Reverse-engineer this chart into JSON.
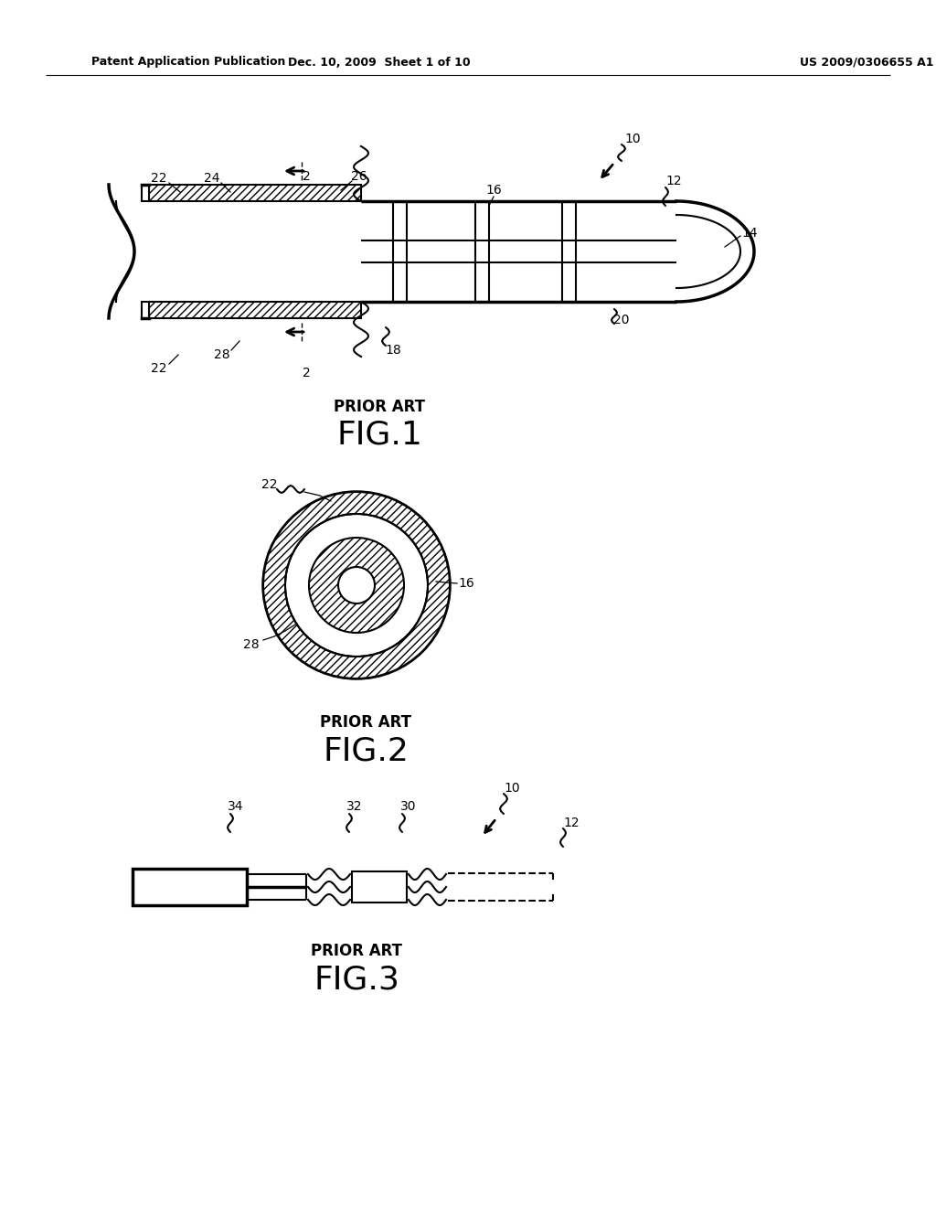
{
  "bg_color": "#ffffff",
  "header_left": "Patent Application Publication",
  "header_mid": "Dec. 10, 2009  Sheet 1 of 10",
  "header_right": "US 2009/0306655 A1",
  "fig1_label": "FIG.1",
  "fig2_label": "FIG.2",
  "fig3_label": "FIG.3",
  "prior_art": "PRIOR ART",
  "lc": "#000000",
  "lw": 1.5,
  "tlw": 2.5
}
